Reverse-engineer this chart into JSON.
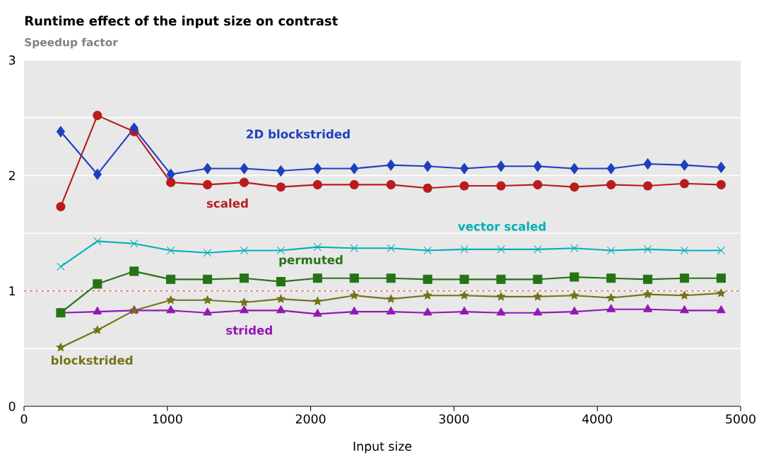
{
  "chart_data": {
    "type": "line",
    "title": "Runtime effect of the input size on contrast",
    "subtitle": "Speedup factor",
    "xlabel": "Input size",
    "x": [
      256,
      512,
      768,
      1024,
      1280,
      1536,
      1792,
      2048,
      2304,
      2560,
      2816,
      3072,
      3328,
      3584,
      3840,
      4096,
      4352,
      4608,
      4864
    ],
    "series": [
      {
        "name": "2D blockstrided",
        "color": "#1f3fbf",
        "marker": "diamond",
        "values": [
          2.38,
          2.01,
          2.41,
          2.01,
          2.06,
          2.06,
          2.04,
          2.06,
          2.06,
          2.09,
          2.08,
          2.06,
          2.08,
          2.08,
          2.06,
          2.06,
          2.1,
          2.09,
          2.07
        ]
      },
      {
        "name": "scaled",
        "color": "#b81c1c",
        "marker": "circle",
        "values": [
          1.73,
          2.52,
          2.38,
          1.94,
          1.92,
          1.94,
          1.9,
          1.92,
          1.92,
          1.92,
          1.89,
          1.91,
          1.91,
          1.92,
          1.9,
          1.92,
          1.91,
          1.93,
          1.92
        ]
      },
      {
        "name": "vector scaled",
        "color": "#00b0b8",
        "marker": "cross",
        "values": [
          1.21,
          1.43,
          1.41,
          1.35,
          1.33,
          1.35,
          1.35,
          1.38,
          1.37,
          1.37,
          1.35,
          1.36,
          1.36,
          1.36,
          1.37,
          1.35,
          1.36,
          1.35,
          1.35
        ]
      },
      {
        "name": "permuted",
        "color": "#267314",
        "marker": "square",
        "values": [
          0.81,
          1.06,
          1.17,
          1.1,
          1.1,
          1.11,
          1.08,
          1.11,
          1.11,
          1.11,
          1.1,
          1.1,
          1.1,
          1.1,
          1.12,
          1.11,
          1.1,
          1.11,
          1.11
        ]
      },
      {
        "name": "blockstrided",
        "color": "#737316",
        "marker": "star",
        "values": [
          0.51,
          0.66,
          0.83,
          0.92,
          0.92,
          0.9,
          0.93,
          0.91,
          0.96,
          0.93,
          0.96,
          0.96,
          0.95,
          0.95,
          0.96,
          0.94,
          0.97,
          0.96,
          0.98
        ]
      },
      {
        "name": "strided",
        "color": "#9317b5",
        "marker": "triangle",
        "values": [
          0.81,
          0.82,
          0.83,
          0.83,
          0.81,
          0.83,
          0.83,
          0.8,
          0.82,
          0.82,
          0.81,
          0.82,
          0.81,
          0.81,
          0.82,
          0.84,
          0.84,
          0.83,
          0.83
        ]
      }
    ],
    "xlim": [
      0,
      5000
    ],
    "xticks": [
      0,
      1000,
      2000,
      3000,
      4000,
      5000
    ],
    "ylim": [
      0,
      3
    ],
    "yticks": [
      0,
      {
        "value": 0.5,
        "label": null
      },
      1,
      {
        "value": 1.5,
        "label": null
      },
      2,
      {
        "value": 2.5,
        "label": null
      },
      3
    ],
    "grid": "y",
    "line_style": "solid",
    "ref_lines": [
      {
        "axis": "y",
        "value": 1,
        "color": "#e8262a",
        "line_style": "dashed"
      }
    ]
  }
}
